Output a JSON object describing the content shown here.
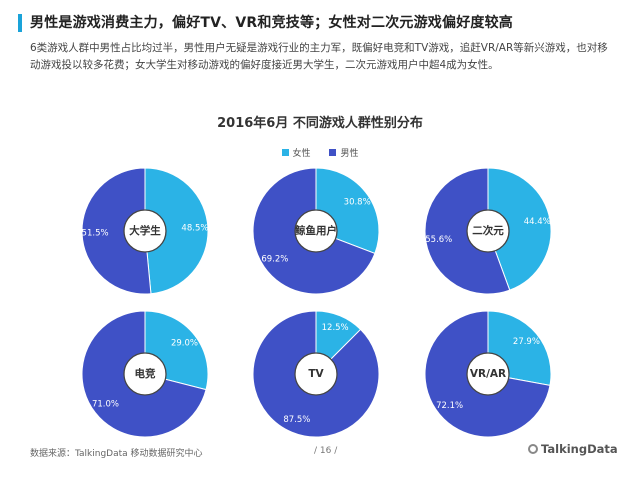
{
  "header": {
    "headline": "男性是游戏消费主力，偏好TV、VR和竞技等；女性对二次元游戏偏好度较高",
    "intro": "6类游戏人群中男性占比均过半，男性用户无疑是游戏行业的主力军，既偏好电竞和TV游戏，追赶VR/AR等新兴游戏，也对移动游戏投以较多花费；女大学生对移动游戏的偏好度接近男大学生，二次元游戏用户中超4成为女性。"
  },
  "chart_data": {
    "type": "pie",
    "title": "2016年6月  不同游戏人群性别分布",
    "legend": [
      "女性",
      "男性"
    ],
    "legend_placement": "top-center",
    "colors": {
      "female": "#2bb3e6",
      "male": "#3f51c6"
    },
    "groups": [
      {
        "label": "大学生",
        "female": 48.5,
        "male": 51.5,
        "female_label": "48.5%",
        "male_label": "51.5%"
      },
      {
        "label": "鲸鱼用户",
        "female": 30.8,
        "male": 69.2,
        "female_label": "30.8%",
        "male_label": "69.2%"
      },
      {
        "label": "二次元",
        "female": 44.4,
        "male": 55.6,
        "female_label": "44.4%",
        "male_label": "55.6%"
      },
      {
        "label": "电竞",
        "female": 29.0,
        "male": 71.0,
        "female_label": "29.0%",
        "male_label": "71.0%"
      },
      {
        "label": "TV",
        "female": 12.5,
        "male": 87.5,
        "female_label": "12.5%",
        "male_label": "87.5%"
      },
      {
        "label": "VR/AR",
        "female": 27.9,
        "male": 72.1,
        "female_label": "27.9%",
        "male_label": "72.1%"
      }
    ]
  },
  "footer": {
    "source": "数据来源：TalkingData  移动数据研究中心",
    "page": "/ 16 /",
    "brand": "TalkingData"
  }
}
